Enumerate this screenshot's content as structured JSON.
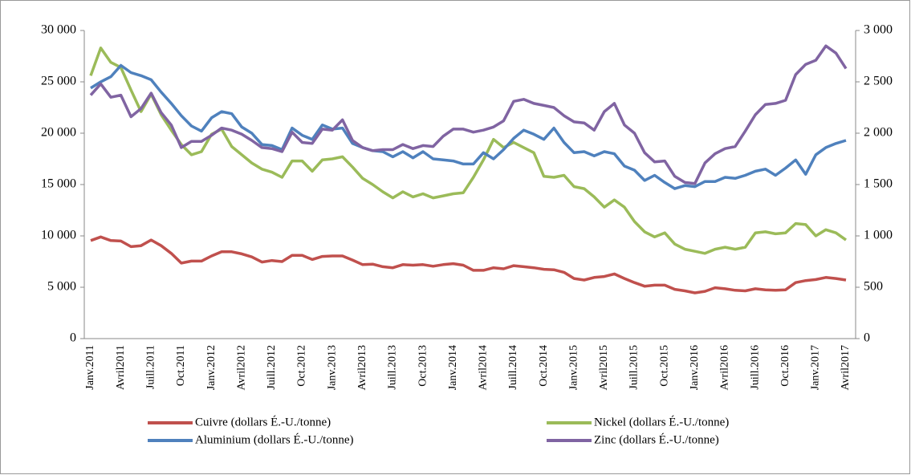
{
  "chart_data": {
    "type": "line",
    "categories": [
      "Janv.2011",
      null,
      null,
      "Avril2011",
      null,
      null,
      "Juill.2011",
      null,
      null,
      "Oct.2011",
      null,
      null,
      "Janv.2012",
      null,
      null,
      "Avril2012",
      null,
      null,
      "Juill.2012",
      null,
      null,
      "Oct.2012",
      null,
      null,
      "Janv.2013",
      null,
      null,
      "Avril2013",
      null,
      null,
      "Juill.2013",
      null,
      null,
      "Oct.2013",
      null,
      null,
      "Janv.2014",
      null,
      null,
      "Avril2014",
      null,
      null,
      "Juill.2014",
      null,
      null,
      "Oct.2014",
      null,
      null,
      "Janv.2015",
      null,
      null,
      "Avril2015",
      null,
      null,
      "Juill.2015",
      null,
      null,
      "Oct.2015",
      null,
      null,
      "Janv.2016",
      null,
      null,
      "Avril2016",
      null,
      null,
      "Juill.2016",
      null,
      null,
      "Oct.2016",
      null,
      null,
      "Janv.2017",
      null,
      null,
      "Avril2017"
    ],
    "series": [
      {
        "name": "Cuivre (dollars É.-U./tonne)",
        "color": "#c0504d",
        "values": [
          9550,
          9900,
          9550,
          9500,
          8950,
          9050,
          9600,
          9050,
          8300,
          7350,
          7550,
          7550,
          8050,
          8450,
          8450,
          8250,
          7950,
          7450,
          7600,
          7500,
          8100,
          8100,
          7700,
          8000,
          8050,
          8050,
          7650,
          7200,
          7250,
          7000,
          6900,
          7200,
          7150,
          7200,
          7050,
          7200,
          7300,
          7150,
          6650,
          6650,
          6900,
          6800,
          7100,
          7000,
          6900,
          6750,
          6700,
          6450,
          5850,
          5700,
          5950,
          6050,
          6300,
          5850,
          5450,
          5100,
          5200,
          5200,
          4800,
          4650,
          4450,
          4600,
          4950,
          4850,
          4700,
          4650,
          4850,
          4750,
          4700,
          4750,
          5450,
          5650,
          5750,
          5950,
          5850,
          5700
        ]
      },
      {
        "name": "Nickel (dollars É.-U./tonne)",
        "color": "#9bbb59",
        "values": [
          25600,
          28300,
          26900,
          26400,
          24200,
          22100,
          23800,
          21800,
          20300,
          18900,
          17900,
          18200,
          19900,
          20400,
          18700,
          17900,
          17100,
          16500,
          16200,
          15700,
          17300,
          17300,
          16300,
          17400,
          17500,
          17700,
          16700,
          15600,
          15000,
          14300,
          13700,
          14300,
          13800,
          14100,
          13700,
          13900,
          14100,
          14200,
          15700,
          17400,
          19400,
          18600,
          19100,
          18600,
          18100,
          15800,
          15700,
          15900,
          14800,
          14600,
          13800,
          12800,
          13500,
          12800,
          11400,
          10400,
          9900,
          10300,
          9200,
          8700,
          8500,
          8300,
          8700,
          8900,
          8700,
          8900,
          10300,
          10400,
          10200,
          10300,
          11200,
          11100,
          10000,
          10600,
          10300,
          9600
        ]
      },
      {
        "name": "Aluminium (dollars É.-U./tonne)",
        "color": "#4f81bd",
        "values": [
          24400,
          25000,
          25500,
          26600,
          25900,
          25600,
          25200,
          24000,
          22900,
          21700,
          20700,
          20200,
          21500,
          22100,
          21900,
          20600,
          20000,
          18900,
          18800,
          18400,
          20500,
          19800,
          19400,
          20800,
          20400,
          20500,
          19000,
          18600,
          18300,
          18200,
          17700,
          18200,
          17600,
          18200,
          17500,
          17400,
          17300,
          17000,
          17000,
          18100,
          17500,
          18400,
          19500,
          20300,
          19900,
          19400,
          20500,
          19100,
          18100,
          18200,
          17800,
          18200,
          18000,
          16800,
          16400,
          15400,
          15900,
          15200,
          14600,
          14900,
          14800,
          15300,
          15300,
          15700,
          15600,
          15900,
          16300,
          16500,
          15900,
          16600,
          17400,
          16000,
          17900,
          18600,
          19000,
          19300
        ]
      },
      {
        "name": "Zinc (dollars É.-U./tonne)",
        "color": "#8064a2",
        "axis": "y2",
        "values": [
          2370,
          2480,
          2350,
          2370,
          2160,
          2240,
          2390,
          2200,
          2080,
          1860,
          1920,
          1920,
          1980,
          2050,
          2030,
          1990,
          1930,
          1860,
          1850,
          1820,
          2010,
          1910,
          1900,
          2040,
          2030,
          2130,
          1930,
          1860,
          1830,
          1840,
          1840,
          1890,
          1850,
          1880,
          1870,
          1970,
          2040,
          2040,
          2010,
          2030,
          2060,
          2120,
          2310,
          2330,
          2290,
          2270,
          2250,
          2170,
          2110,
          2100,
          2030,
          2210,
          2290,
          2080,
          2000,
          1810,
          1720,
          1730,
          1580,
          1520,
          1510,
          1710,
          1800,
          1850,
          1870,
          2020,
          2180,
          2280,
          2290,
          2320,
          2570,
          2670,
          2710,
          2850,
          2780,
          2630
        ]
      }
    ],
    "ylim": [
      0,
      30000
    ],
    "yticks": [
      0,
      {
        "value": 5000,
        "label": "5 000"
      },
      {
        "value": 10000,
        "label": "10 000"
      },
      {
        "value": 15000,
        "label": "15 000"
      },
      {
        "value": 20000,
        "label": "20 000"
      },
      {
        "value": 25000,
        "label": "25 000"
      },
      {
        "value": 30000,
        "label": "30 000"
      }
    ],
    "y2lim": [
      0,
      3000
    ],
    "y2ticks": [
      0,
      500,
      {
        "value": 1000,
        "label": "1 000"
      },
      {
        "value": 1500,
        "label": "1 500"
      },
      {
        "value": 2000,
        "label": "2 000"
      },
      {
        "value": 2500,
        "label": "2 500"
      },
      {
        "value": 3000,
        "label": "3 000"
      }
    ],
    "legend": "bottom"
  }
}
